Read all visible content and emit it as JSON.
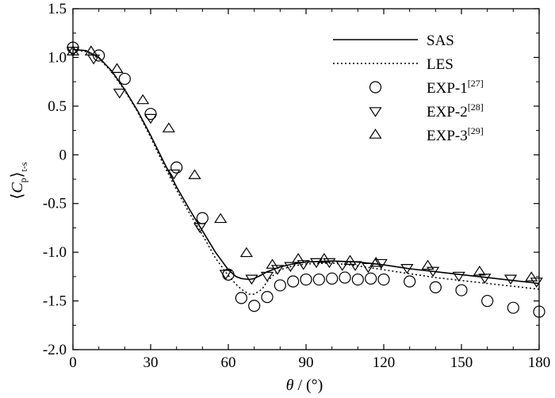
{
  "chart_data": {
    "type": "line",
    "title": "",
    "xlabel": {
      "symbol": "θ",
      "rest": " / (°)"
    },
    "ylabel": {
      "main": "C",
      "sub": "p",
      "outer_sub": "t-s"
    },
    "xlim": [
      0,
      180
    ],
    "ylim": [
      -2.0,
      1.5
    ],
    "x_ticks": [
      0,
      30,
      60,
      90,
      120,
      150,
      180
    ],
    "x_tick_labels": [
      "0",
      "30",
      "60",
      "90",
      "120",
      "150",
      "180"
    ],
    "y_ticks": [
      1.5,
      1.0,
      0.5,
      0,
      -0.5,
      -1.0,
      -1.5,
      -2.0
    ],
    "y_tick_labels": [
      "1.5",
      "1.0",
      "0.5",
      "0",
      "-0.5",
      "-1.0",
      "-1.5",
      "-2.0"
    ],
    "grid": false,
    "legend_position": "top-right",
    "series": [
      {
        "name": "SAS",
        "label_base": "SAS",
        "label_sup": "",
        "kind": "line",
        "style": "solid",
        "color": "#000000",
        "x": [
          0,
          5,
          10,
          15,
          20,
          25,
          30,
          35,
          40,
          45,
          50,
          55,
          60,
          63,
          65,
          68,
          70,
          73,
          75,
          80,
          85,
          90,
          100,
          110,
          120,
          130,
          140,
          150,
          160,
          170,
          180
        ],
        "y": [
          1.08,
          1.07,
          1.0,
          0.86,
          0.67,
          0.45,
          0.2,
          -0.07,
          -0.33,
          -0.56,
          -0.78,
          -1.0,
          -1.18,
          -1.25,
          -1.27,
          -1.28,
          -1.27,
          -1.23,
          -1.2,
          -1.15,
          -1.12,
          -1.1,
          -1.09,
          -1.1,
          -1.13,
          -1.17,
          -1.2,
          -1.23,
          -1.26,
          -1.29,
          -1.32
        ]
      },
      {
        "name": "LES",
        "label_base": "LES",
        "label_sup": "",
        "kind": "line",
        "style": "dotted",
        "color": "#000000",
        "x": [
          0,
          5,
          10,
          15,
          20,
          25,
          30,
          35,
          40,
          45,
          50,
          55,
          60,
          63,
          65,
          68,
          70,
          73,
          75,
          78,
          80,
          85,
          90,
          100,
          110,
          120,
          130,
          140,
          150,
          160,
          170,
          180
        ],
        "y": [
          1.08,
          1.06,
          0.99,
          0.85,
          0.66,
          0.44,
          0.18,
          -0.1,
          -0.36,
          -0.6,
          -0.82,
          -1.06,
          -1.24,
          -1.33,
          -1.38,
          -1.43,
          -1.43,
          -1.38,
          -1.3,
          -1.22,
          -1.18,
          -1.14,
          -1.12,
          -1.11,
          -1.14,
          -1.18,
          -1.22,
          -1.26,
          -1.29,
          -1.32,
          -1.35,
          -1.38
        ]
      },
      {
        "name": "EXP-1[27]",
        "label_base": "EXP-1",
        "label_sup": "[27]",
        "kind": "scatter",
        "marker": "circle",
        "color": "#000000",
        "x": [
          0,
          10,
          20,
          30,
          40,
          50,
          60,
          65,
          70,
          75,
          80,
          85,
          90,
          95,
          100,
          105,
          110,
          115,
          120,
          130,
          140,
          150,
          160,
          170,
          180
        ],
        "y": [
          1.1,
          1.02,
          0.78,
          0.42,
          -0.13,
          -0.65,
          -1.23,
          -1.47,
          -1.55,
          -1.46,
          -1.34,
          -1.3,
          -1.28,
          -1.28,
          -1.27,
          -1.26,
          -1.28,
          -1.27,
          -1.28,
          -1.3,
          -1.36,
          -1.39,
          -1.5,
          -1.57,
          -1.61
        ]
      },
      {
        "name": "EXP-2[28]",
        "label_base": "EXP-2",
        "label_sup": "[28]",
        "kind": "scatter",
        "marker": "triangle-down",
        "color": "#000000",
        "x": [
          0,
          8,
          18,
          30,
          39,
          49,
          59,
          69,
          75,
          79,
          84,
          89,
          94,
          99,
          104,
          109,
          114,
          119,
          129,
          139,
          149,
          159,
          169,
          179
        ],
        "y": [
          1.07,
          0.99,
          0.64,
          0.38,
          -0.19,
          -0.74,
          -1.22,
          -1.27,
          -1.24,
          -1.17,
          -1.14,
          -1.12,
          -1.1,
          -1.1,
          -1.13,
          -1.13,
          -1.15,
          -1.11,
          -1.16,
          -1.19,
          -1.24,
          -1.26,
          -1.27,
          -1.3
        ]
      },
      {
        "name": "EXP-3[29]",
        "label_base": "EXP-3",
        "label_sup": "[29]",
        "kind": "scatter",
        "marker": "triangle-up",
        "color": "#000000",
        "x": [
          0,
          7,
          17,
          27,
          37,
          47,
          57,
          67,
          77,
          87,
          97,
          107,
          117,
          137,
          157,
          177
        ],
        "y": [
          1.06,
          1.06,
          0.88,
          0.56,
          0.27,
          -0.21,
          -0.66,
          -1.01,
          -1.13,
          -1.07,
          -1.07,
          -1.09,
          -1.11,
          -1.14,
          -1.2,
          -1.26
        ]
      }
    ]
  }
}
